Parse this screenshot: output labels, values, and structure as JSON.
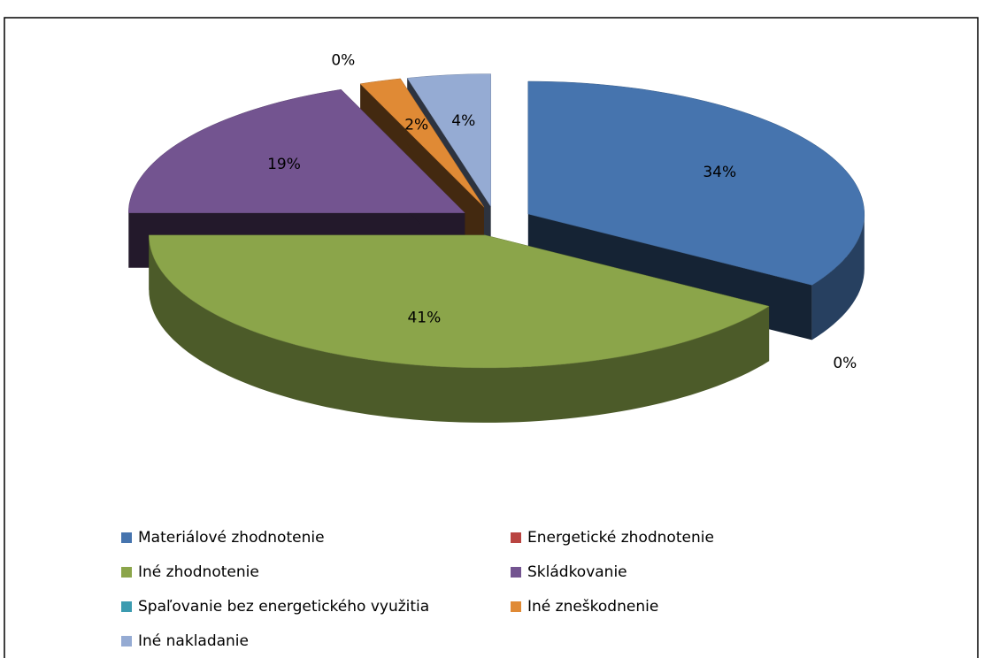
{
  "chart_data": {
    "type": "pie3d",
    "categories": [
      "Materiálové zhodnotenie",
      "Energetické zhodnotenie",
      "Iné zhodnotenie",
      "Skládkovanie",
      "Spaľovanie bez energetického využitia",
      "Iné zneškodnenie",
      "Iné nakladanie"
    ],
    "values": [
      34,
      0,
      41,
      19,
      0,
      2,
      4
    ],
    "value_labels": [
      "34%",
      "0%",
      "41%",
      "19%",
      "0%",
      "2%",
      "4%"
    ],
    "colors": [
      "#4674ae",
      "#b94441",
      "#8ba54a",
      "#735490",
      "#3c9bb0",
      "#e08a35",
      "#95abd3"
    ],
    "legend": "bottom"
  }
}
